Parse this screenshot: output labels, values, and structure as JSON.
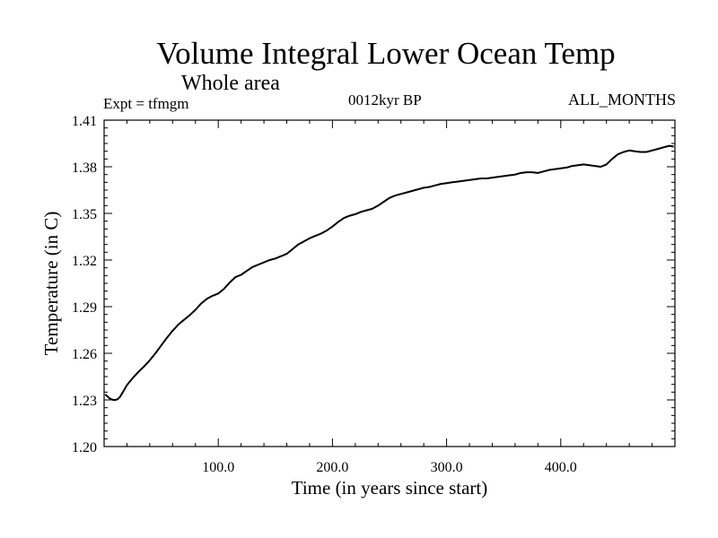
{
  "header": {
    "title": "Volume Integral Lower Ocean Temp",
    "subtitle": "Whole area",
    "expt": "Expt = tfmgm",
    "period": "0012kyr BP",
    "months": "ALL_MONTHS"
  },
  "chart_data": {
    "type": "line",
    "title": "Volume Integral Lower Ocean Temp",
    "xlabel": "Time (in years since start)",
    "ylabel": "Temperature (in C)",
    "xlim": [
      0,
      500
    ],
    "ylim": [
      1.2,
      1.41
    ],
    "xticks": [
      100,
      200,
      300,
      400
    ],
    "xtick_labels": [
      "100.0",
      "200.0",
      "300.0",
      "400.0"
    ],
    "yticks": [
      1.2,
      1.23,
      1.26,
      1.29,
      1.32,
      1.35,
      1.38,
      1.41
    ],
    "ytick_labels": [
      "1.20",
      "1.23",
      "1.26",
      "1.29",
      "1.32",
      "1.35",
      "1.38",
      "1.41"
    ],
    "grid": false,
    "series": [
      {
        "color": "#000000",
        "x": [
          1,
          4,
          6,
          8,
          10,
          12,
          14,
          16,
          18,
          20,
          25,
          30,
          35,
          40,
          45,
          50,
          55,
          60,
          65,
          70,
          75,
          80,
          85,
          90,
          95,
          100,
          105,
          110,
          115,
          120,
          125,
          130,
          135,
          140,
          145,
          150,
          155,
          160,
          165,
          170,
          175,
          180,
          185,
          190,
          195,
          200,
          205,
          210,
          215,
          220,
          225,
          230,
          235,
          240,
          245,
          250,
          255,
          260,
          265,
          270,
          275,
          280,
          285,
          290,
          295,
          300,
          305,
          310,
          315,
          320,
          325,
          330,
          335,
          340,
          345,
          350,
          355,
          360,
          365,
          370,
          375,
          380,
          385,
          390,
          395,
          400,
          405,
          410,
          415,
          420,
          425,
          430,
          435,
          440,
          445,
          450,
          455,
          460,
          465,
          470,
          475,
          480,
          485,
          490,
          495,
          499
        ],
        "y": [
          1.2335,
          1.2315,
          1.2305,
          1.23,
          1.23,
          1.2305,
          1.232,
          1.2345,
          1.237,
          1.2395,
          1.244,
          1.248,
          1.2515,
          1.2555,
          1.26,
          1.265,
          1.27,
          1.2745,
          1.2785,
          1.2815,
          1.2845,
          1.288,
          1.292,
          1.295,
          1.297,
          1.2985,
          1.3015,
          1.3055,
          1.309,
          1.3105,
          1.313,
          1.3155,
          1.317,
          1.3185,
          1.32,
          1.321,
          1.3225,
          1.324,
          1.327,
          1.33,
          1.332,
          1.334,
          1.3355,
          1.337,
          1.339,
          1.3415,
          1.3445,
          1.347,
          1.3485,
          1.3495,
          1.351,
          1.352,
          1.353,
          1.355,
          1.3575,
          1.36,
          1.3615,
          1.3625,
          1.3635,
          1.3645,
          1.3655,
          1.3665,
          1.367,
          1.368,
          1.369,
          1.3695,
          1.37,
          1.3705,
          1.371,
          1.3715,
          1.372,
          1.3725,
          1.3725,
          1.373,
          1.3735,
          1.374,
          1.3745,
          1.375,
          1.376,
          1.3765,
          1.3765,
          1.376,
          1.377,
          1.378,
          1.3785,
          1.379,
          1.3795,
          1.3805,
          1.381,
          1.3815,
          1.381,
          1.3805,
          1.38,
          1.3815,
          1.385,
          1.388,
          1.3895,
          1.3905,
          1.39,
          1.3895,
          1.3895,
          1.3905,
          1.3915,
          1.3925,
          1.3935,
          1.393
        ]
      }
    ]
  }
}
